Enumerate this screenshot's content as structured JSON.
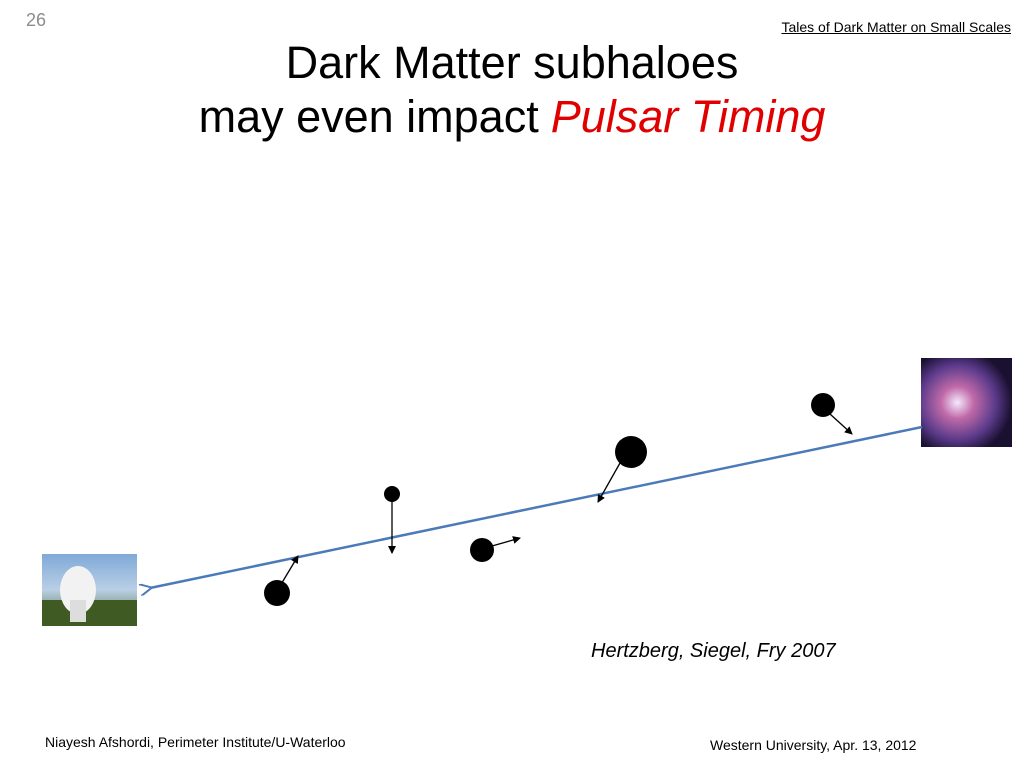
{
  "slide_number": "26",
  "header": "Tales of Dark Matter on Small Scales",
  "title": {
    "line1": "Dark Matter subhaloes",
    "line2": "may even impact",
    "highlight": "Pulsar Timing"
  },
  "citation": "Hertzberg, Siegel, Fry 2007",
  "footer": {
    "left": "Niayesh Afshordi, Perimeter Institute/U-Waterloo",
    "right": "Western University, Apr. 13, 2012"
  }
}
